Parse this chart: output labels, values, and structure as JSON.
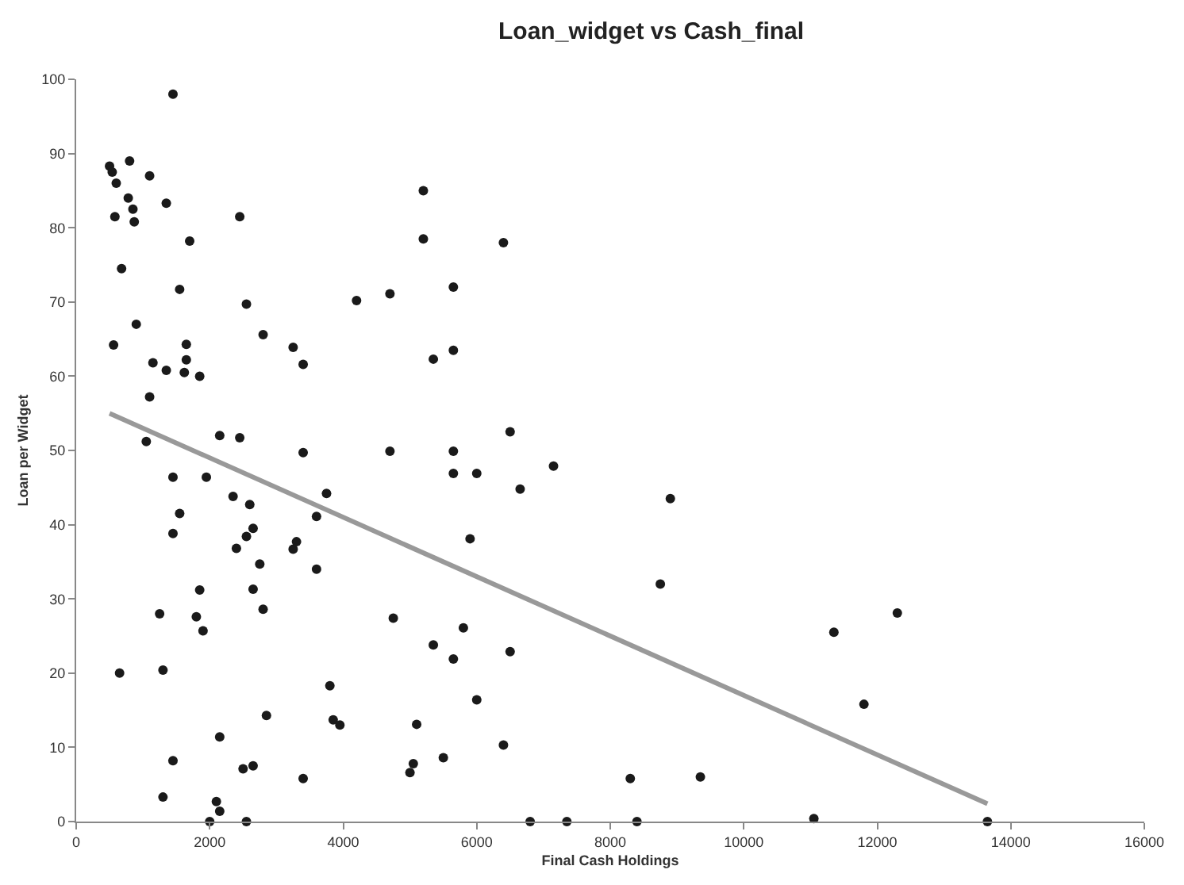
{
  "chart_data": {
    "type": "scatter",
    "title": "Loan_widget vs Cash_final",
    "xlabel": "Final Cash Holdings",
    "ylabel": "Loan per Widget",
    "xlim": [
      0,
      16000
    ],
    "xticks": [
      0,
      2000,
      4000,
      6000,
      8000,
      10000,
      12000,
      14000,
      16000
    ],
    "ylim": [
      0,
      100
    ],
    "yticks": [
      0,
      10,
      20,
      30,
      40,
      50,
      60,
      70,
      80,
      90,
      100
    ],
    "grid": false,
    "marker": "circle",
    "series": [
      {
        "color": "#1a1a1a",
        "x": [
          500,
          540,
          600,
          580,
          560,
          680,
          800,
          780,
          850,
          870,
          900,
          1100,
          1350,
          1450,
          1700,
          1550,
          1650,
          1650,
          1620,
          1850,
          1350,
          1150,
          1100,
          1050,
          2150,
          2450,
          2450,
          2550,
          2800,
          3250,
          3400,
          4200,
          4700,
          5200,
          5200,
          6400,
          5650,
          5650,
          5350,
          3400,
          4700,
          6500,
          5650,
          5650,
          6000,
          7150,
          8900,
          6650,
          5900,
          8750,
          3750,
          3600,
          1450,
          1950,
          1550,
          1450,
          2600,
          2650,
          2550,
          2400,
          2350,
          3250,
          3300,
          2750,
          3600,
          1850,
          2650,
          1800,
          2800,
          1900,
          1250,
          4750,
          5800,
          5350,
          5650,
          6500,
          6000,
          1300,
          650,
          3800,
          2850,
          3850,
          3950,
          5100,
          2150,
          1450,
          2500,
          2650,
          3400,
          5050,
          5000,
          5500,
          6400,
          8300,
          9350,
          1300,
          2100,
          2150,
          2000,
          2550,
          6800,
          7350,
          8400,
          11050,
          13650,
          11350,
          12300,
          11800
        ],
        "values": [
          88.3,
          87.5,
          86,
          81.5,
          64.2,
          74.5,
          89,
          84,
          82.5,
          80.8,
          67,
          87,
          83.3,
          98,
          78.2,
          71.7,
          64.3,
          62.2,
          60.5,
          60,
          60.8,
          61.8,
          57.2,
          51.2,
          52,
          51.7,
          81.5,
          69.7,
          65.6,
          63.9,
          61.6,
          70.2,
          71.1,
          85,
          78.5,
          78,
          72,
          63.5,
          62.3,
          49.7,
          49.9,
          52.5,
          49.9,
          46.9,
          46.9,
          47.9,
          43.5,
          44.8,
          38.1,
          32,
          44.2,
          41.1,
          46.4,
          46.4,
          41.5,
          38.8,
          42.7,
          39.5,
          38.4,
          36.8,
          43.8,
          36.7,
          37.7,
          34.7,
          34,
          31.2,
          31.3,
          27.6,
          28.6,
          25.7,
          28,
          27.4,
          26.1,
          23.8,
          21.9,
          22.9,
          16.4,
          20.4,
          20,
          18.3,
          14.3,
          13.7,
          13,
          13.1,
          11.4,
          8.2,
          7.1,
          7.5,
          5.8,
          7.8,
          6.6,
          8.6,
          10.3,
          5.8,
          6,
          3.3,
          2.7,
          1.4,
          0,
          0,
          0,
          0,
          0,
          0.4,
          0,
          25.5,
          28.1,
          15.8
        ]
      },
      {
        "type": "line",
        "color": "#999999",
        "marker": "none",
        "x": [
          500,
          13650
        ],
        "values": [
          55,
          2.4
        ]
      }
    ]
  }
}
